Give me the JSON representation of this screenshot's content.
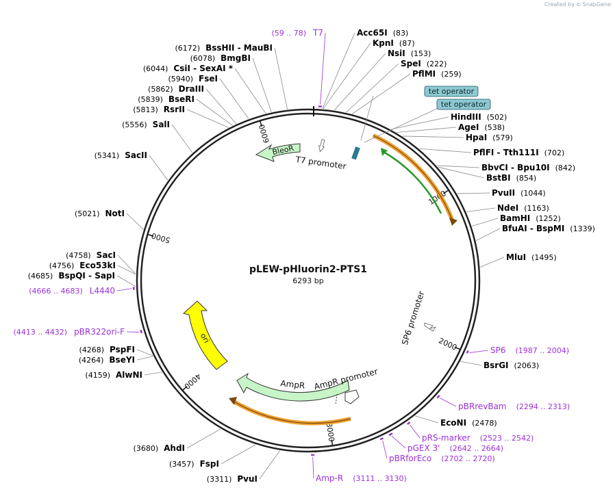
{
  "credit": {
    "prefix": "Created by",
    "brand": "SnapGene"
  },
  "plasmid": {
    "name": "pLEW-pHluorin2-PTS1",
    "size_label": "6293 bp",
    "length": 6293
  },
  "colors": {
    "ring": "#222222",
    "enzyme": "#000000",
    "primer": "#9b30d9",
    "feature_green": "#c8f5c8",
    "feature_yellow": "#ffff00",
    "operator_fill": "#8fc8d0",
    "orange": "#f0a030",
    "green_arrow": "#2a9a2a"
  },
  "ticks": [
    {
      "pos": 1000,
      "label": "1000"
    },
    {
      "pos": 2000,
      "label": "2000"
    },
    {
      "pos": 3000,
      "label": "3000"
    },
    {
      "pos": 4000,
      "label": "4000"
    },
    {
      "pos": 5000,
      "label": "5000"
    },
    {
      "pos": 6000,
      "label": "6000"
    }
  ],
  "enzymes": [
    {
      "pos": 83,
      "names": [
        "Acc65I"
      ],
      "loc": "(83)"
    },
    {
      "pos": 87,
      "names": [
        "KpnI"
      ],
      "loc": "(87)"
    },
    {
      "pos": 153,
      "names": [
        "NsiI"
      ],
      "loc": "(153)"
    },
    {
      "pos": 222,
      "names": [
        "SpeI"
      ],
      "loc": "(222)"
    },
    {
      "pos": 259,
      "names": [
        "PflMI"
      ],
      "loc": "(259)"
    },
    {
      "pos": 502,
      "names": [
        "HindIII"
      ],
      "loc": "(502)"
    },
    {
      "pos": 538,
      "names": [
        "AgeI"
      ],
      "loc": "(538)"
    },
    {
      "pos": 579,
      "names": [
        "HpaI"
      ],
      "loc": "(579)"
    },
    {
      "pos": 702,
      "names": [
        "PflFI",
        "Tth111I"
      ],
      "loc": "(702)"
    },
    {
      "pos": 842,
      "names": [
        "BbvCI",
        "Bpu10I"
      ],
      "loc": "(842)"
    },
    {
      "pos": 854,
      "names": [
        "BstBI"
      ],
      "loc": "(854)"
    },
    {
      "pos": 1044,
      "names": [
        "PvuII"
      ],
      "loc": "(1044)"
    },
    {
      "pos": 1163,
      "names": [
        "NdeI"
      ],
      "loc": "(1163)"
    },
    {
      "pos": 1252,
      "names": [
        "BamHI"
      ],
      "loc": "(1252)"
    },
    {
      "pos": 1339,
      "names": [
        "BfuAI",
        "BspMI"
      ],
      "loc": "(1339)"
    },
    {
      "pos": 1495,
      "names": [
        "MluI"
      ],
      "loc": "(1495)"
    },
    {
      "pos": 2063,
      "names": [
        "BsrGI"
      ],
      "loc": "(2063)"
    },
    {
      "pos": 2478,
      "names": [
        "EcoNI"
      ],
      "loc": "(2478)"
    },
    {
      "pos": 3311,
      "names": [
        "PvuI"
      ],
      "loc": "(3311)"
    },
    {
      "pos": 3457,
      "names": [
        "FspI"
      ],
      "loc": "(3457)"
    },
    {
      "pos": 3680,
      "names": [
        "AhdI"
      ],
      "loc": "(3680)"
    },
    {
      "pos": 4159,
      "names": [
        "AlwNI"
      ],
      "loc": "(4159)"
    },
    {
      "pos": 4264,
      "names": [
        "BseYI"
      ],
      "loc": "(4264)"
    },
    {
      "pos": 4268,
      "names": [
        "PspFI"
      ],
      "loc": "(4268)"
    },
    {
      "pos": 4685,
      "names": [
        "BspQI",
        "SapI"
      ],
      "loc": "(4685)"
    },
    {
      "pos": 4756,
      "names": [
        "Eco53kI"
      ],
      "loc": "(4756)"
    },
    {
      "pos": 4758,
      "names": [
        "SacI"
      ],
      "loc": "(4758)"
    },
    {
      "pos": 5021,
      "names": [
        "NotI"
      ],
      "loc": "(5021)"
    },
    {
      "pos": 5341,
      "names": [
        "SacII"
      ],
      "loc": "(5341)"
    },
    {
      "pos": 5556,
      "names": [
        "SalI"
      ],
      "loc": "(5556)"
    },
    {
      "pos": 5813,
      "names": [
        "RsrII"
      ],
      "loc": "(5813)"
    },
    {
      "pos": 5839,
      "names": [
        "BseRI"
      ],
      "loc": "(5839)"
    },
    {
      "pos": 5862,
      "names": [
        "DraIII"
      ],
      "loc": "(5862)"
    },
    {
      "pos": 5940,
      "names": [
        "FseI"
      ],
      "loc": "(5940)"
    },
    {
      "pos": 6044,
      "names": [
        "CsiI",
        "SexAI *"
      ],
      "loc": "(6044)"
    },
    {
      "pos": 6078,
      "names": [
        "BmgBI"
      ],
      "loc": "(6078)"
    },
    {
      "pos": 6172,
      "names": [
        "BssHII",
        "MauBI"
      ],
      "loc": "(6172)"
    }
  ],
  "primers": [
    {
      "start": 59,
      "end": 78,
      "name": "T7",
      "loc": "(59 .. 78)"
    },
    {
      "start": 1987,
      "end": 2004,
      "name": "SP6",
      "loc": "(1987 .. 2004)"
    },
    {
      "start": 2294,
      "end": 2313,
      "name": "pBRrevBam",
      "loc": "(2294 .. 2313)"
    },
    {
      "start": 2523,
      "end": 2542,
      "name": "pRS-marker",
      "loc": "(2523 .. 2542)"
    },
    {
      "start": 2642,
      "end": 2664,
      "name": "pGEX 3'",
      "loc": "(2642 .. 2664)"
    },
    {
      "start": 2702,
      "end": 2720,
      "name": "pBRforEco",
      "loc": "(2702 .. 2720)"
    },
    {
      "start": 3111,
      "end": 3130,
      "name": "Amp-R",
      "loc": "(3111 .. 3130)"
    },
    {
      "start": 4413,
      "end": 4432,
      "name": "pBR322ori-F",
      "loc": "(4413 .. 4432)"
    },
    {
      "start": 4666,
      "end": 4683,
      "name": "L4440",
      "loc": "(4666 .. 4683)"
    }
  ],
  "features": [
    {
      "name": "tet operator",
      "kind": "operator"
    },
    {
      "name": "tet operator",
      "kind": "operator"
    },
    {
      "name": "T7 promoter",
      "kind": "promoter"
    },
    {
      "name": "BleoR",
      "kind": "cds"
    },
    {
      "name": "SP6 promoter",
      "kind": "promoter"
    },
    {
      "name": "AmpR",
      "kind": "cds"
    },
    {
      "name": "AmpR promoter",
      "kind": "promoter"
    },
    {
      "name": "ori",
      "kind": "origin"
    }
  ]
}
